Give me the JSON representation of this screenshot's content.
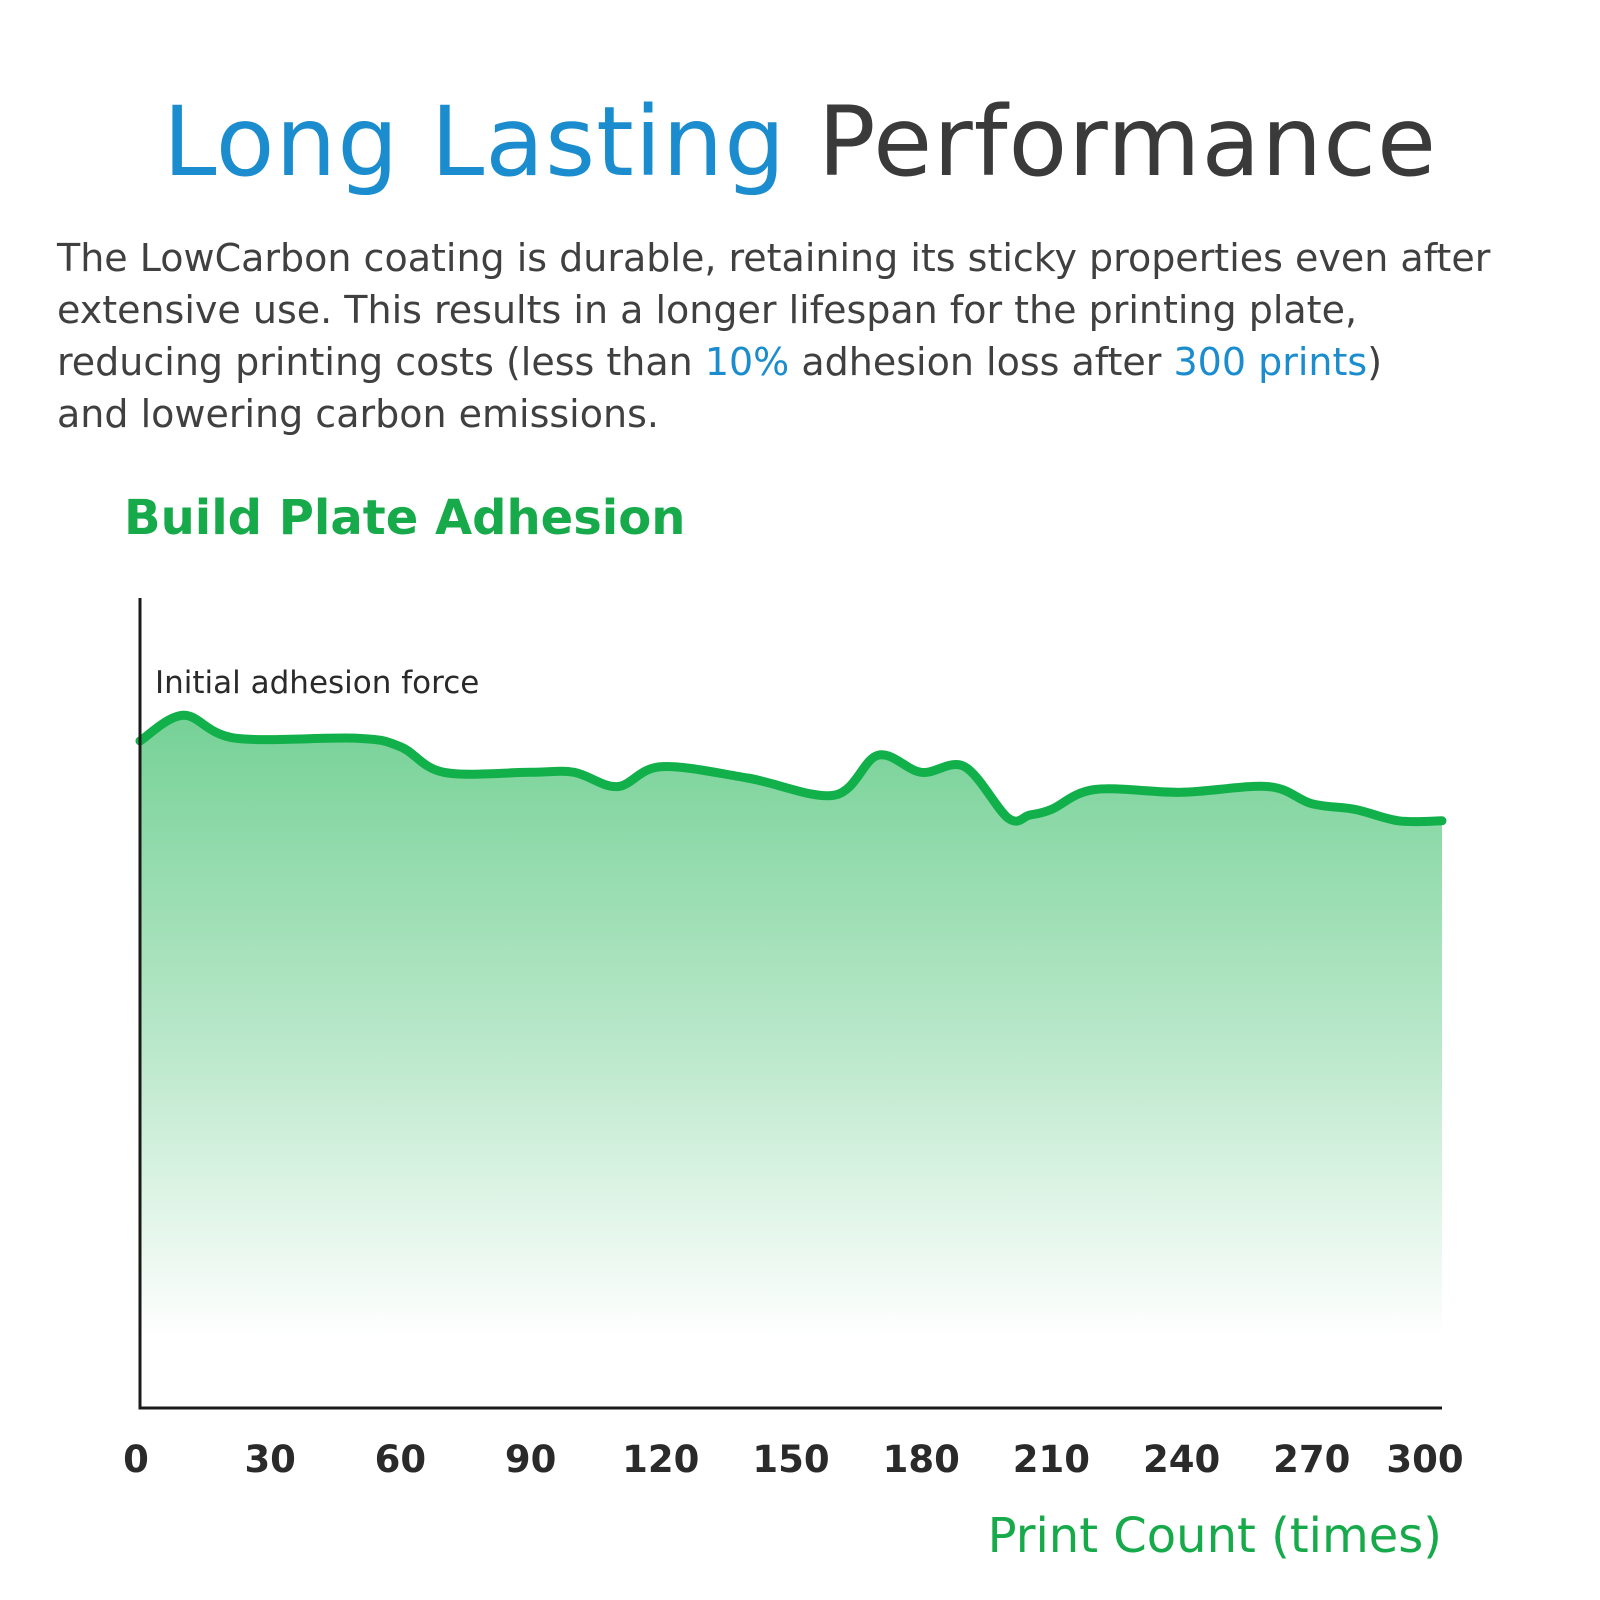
{
  "header": {
    "title_part1": "Long Lasting",
    "title_part2": "Performance"
  },
  "intro": {
    "line1": "The LowCarbon coating is durable, retaining its sticky properties even after",
    "line2": "extensive use. This results in a longer lifespan for the printing plate,",
    "line3_a": "reducing printing costs (less than ",
    "line3_hl1": "10%",
    "line3_b": " adhesion loss after ",
    "line3_hl2": "300 prints",
    "line3_c": ")",
    "line4": "and lowering carbon emissions."
  },
  "colors": {
    "accent_blue": "#1b8dce",
    "accent_green": "#17aa4a",
    "line_green": "#12b04a",
    "text_dark": "#3a3a3a"
  },
  "chart_data": {
    "type": "area",
    "title": "Build Plate Adhesion",
    "xlabel": "Print Count (times)",
    "ylabel": "",
    "annotation": "Initial adhesion force",
    "x_ticks": [
      "0",
      "30",
      "60",
      "90",
      "120",
      "150",
      "180",
      "210",
      "240",
      "270",
      "300"
    ],
    "xlim": [
      0,
      300
    ],
    "ylim": [
      0,
      100
    ],
    "grid": false,
    "series": [
      {
        "x": [
          0,
          10,
          22,
          50,
          60,
          70,
          90,
          100,
          110,
          120,
          140,
          160,
          170,
          180,
          190,
          200,
          205,
          210,
          220,
          240,
          260,
          270,
          280,
          290,
          300
        ],
        "y": [
          100,
          100.9,
          100.1,
          100.1,
          99.8,
          98.9,
          98.9,
          98.9,
          98.4,
          99.1,
          98.7,
          98.1,
          99.5,
          98.9,
          99.1,
          97.3,
          97.4,
          97.6,
          98.3,
          98.2,
          98.4,
          97.8,
          97.6,
          97.2,
          97.2
        ]
      }
    ]
  }
}
